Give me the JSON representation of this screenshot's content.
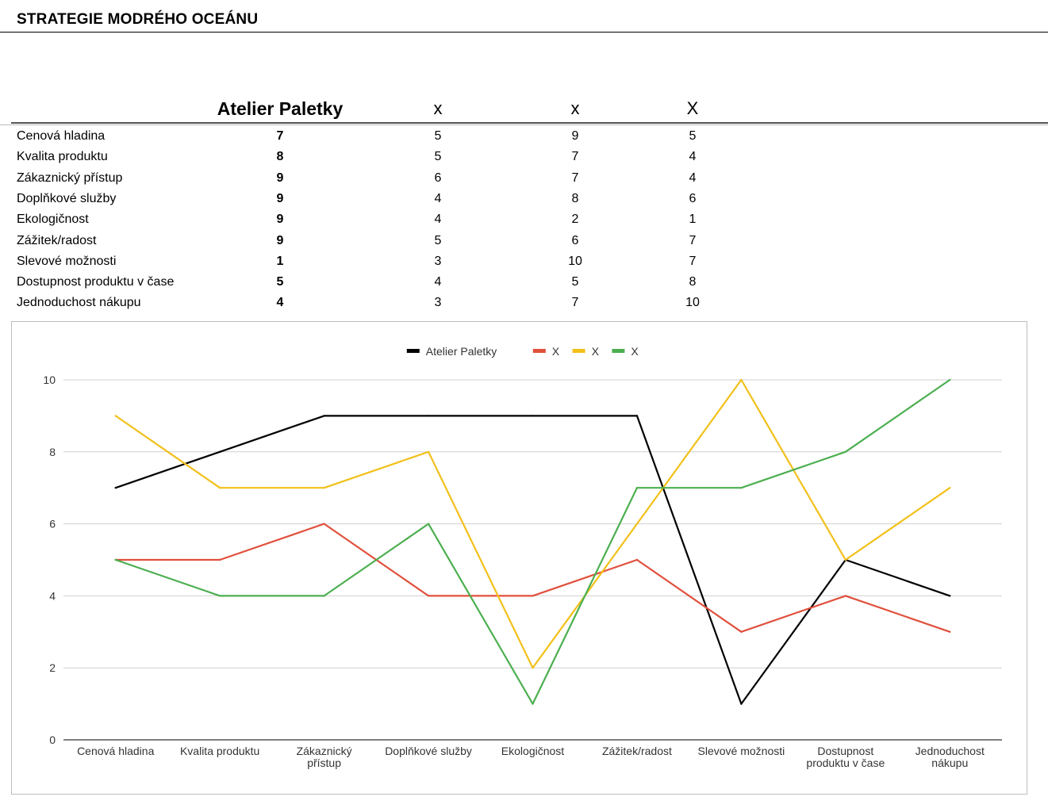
{
  "title": "STRATEGIE MODRÉHO OCEÁNU",
  "table": {
    "headers": [
      "Atelier Paletky",
      "x",
      "x",
      "X"
    ],
    "rows": [
      {
        "label": "Cenová hladina",
        "values": [
          "7",
          "5",
          "9",
          "5"
        ]
      },
      {
        "label": "Kvalita produktu",
        "values": [
          "8",
          "5",
          "7",
          "4"
        ]
      },
      {
        "label": "Zákaznický přístup",
        "values": [
          "9",
          "6",
          "7",
          "4"
        ]
      },
      {
        "label": "Doplňkové služby",
        "values": [
          "9",
          "4",
          "8",
          "6"
        ]
      },
      {
        "label": "Ekologičnost",
        "values": [
          "9",
          "4",
          "2",
          "1"
        ]
      },
      {
        "label": "Zážitek/radost",
        "values": [
          "9",
          "5",
          "6",
          "7"
        ]
      },
      {
        "label": "Slevové možnosti",
        "values": [
          "1",
          "3",
          "10",
          "7"
        ]
      },
      {
        "label": "Dostupnost produktu v čase",
        "values": [
          "5",
          "4",
          "5",
          "8"
        ]
      },
      {
        "label": "Jednoduchost nákupu",
        "values": [
          "4",
          "3",
          "7",
          "10"
        ]
      }
    ]
  },
  "chart_data": {
    "type": "line",
    "title": "",
    "xlabel": "",
    "ylabel": "",
    "ylim": [
      0,
      10
    ],
    "yticks": [
      0,
      2,
      4,
      6,
      8,
      10
    ],
    "grid": true,
    "legend_position": "top-center",
    "categories": [
      [
        "Cenová hladina"
      ],
      [
        "Kvalita produktu"
      ],
      [
        "Zákaznický",
        "přístup"
      ],
      [
        "Doplňkové služby"
      ],
      [
        "Ekologičnost"
      ],
      [
        "Zážitek/radost"
      ],
      [
        "Slevové možnosti"
      ],
      [
        "Dostupnost",
        "produktu v čase"
      ],
      [
        "Jednoduchost",
        "nákupu"
      ]
    ],
    "series": [
      {
        "name": "Atelier Paletky",
        "color": "#000000",
        "values": [
          7,
          8,
          9,
          9,
          9,
          9,
          1,
          5,
          4
        ]
      },
      {
        "name": "X",
        "color": "#e0503c",
        "values": [
          5,
          5,
          6,
          4,
          4,
          5,
          3,
          4,
          3
        ]
      },
      {
        "name": "X",
        "color": "#f2c01a",
        "values": [
          9,
          7,
          7,
          8,
          2,
          6,
          10,
          5,
          7
        ]
      },
      {
        "name": "X",
        "color": "#4caf50",
        "values": [
          5,
          4,
          4,
          6,
          1,
          7,
          7,
          8,
          10
        ]
      }
    ]
  }
}
